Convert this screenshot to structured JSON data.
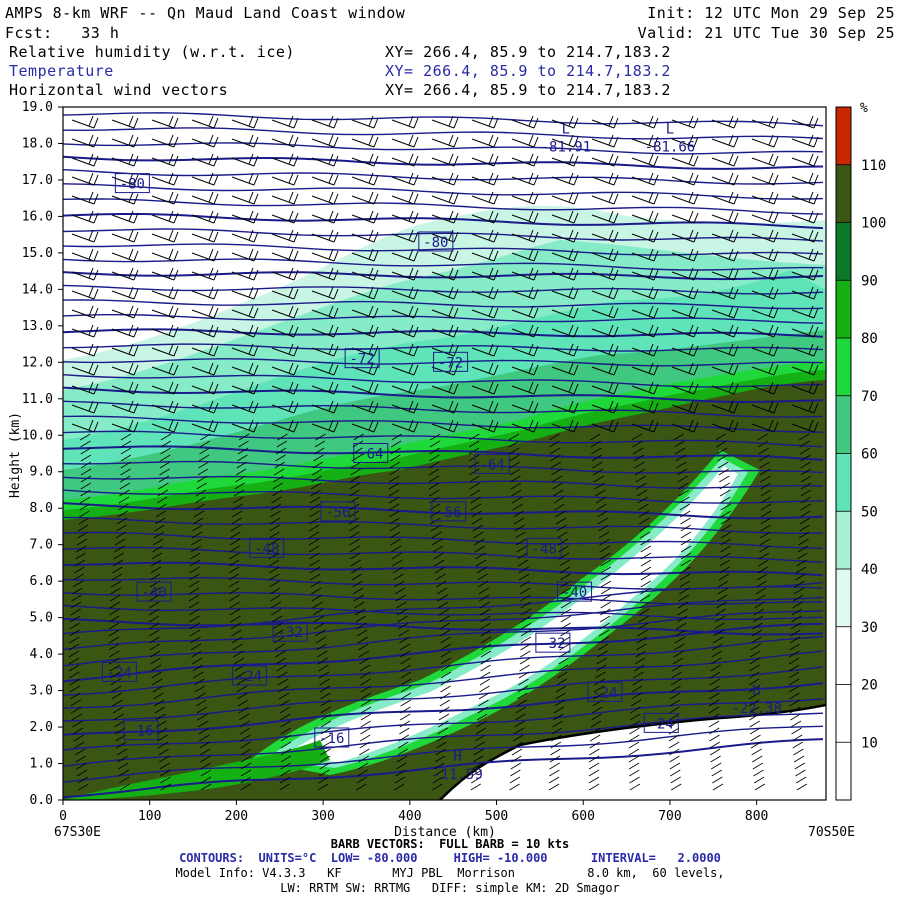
{
  "header": {
    "title": "AMPS 8-km WRF -- Qn Maud Land Coast window",
    "init": "Init: 12 UTC Mon 29 Sep 25",
    "fcst": "Fcst:   33 h",
    "valid": "Valid: 21 UTC Tue 30 Sep 25",
    "fields": [
      {
        "label": "Relative humidity (w.r.t. ice)",
        "xy": "XY= 266.4, 85.9 to 214.7,183.2",
        "color": "#000000"
      },
      {
        "label": "Temperature",
        "xy": "XY= 266.4, 85.9 to 214.7,183.2",
        "color": "#2a2aa8"
      },
      {
        "label": "Horizontal wind vectors",
        "xy": "XY= 266.4, 85.9 to 214.7,183.2",
        "color": "#000000"
      }
    ]
  },
  "chart_data": {
    "type": "heatmap",
    "title": "",
    "xlabel": "Distance (km)",
    "ylabel": "Height (km)",
    "xlim": [
      0,
      880
    ],
    "ylim": [
      0,
      19
    ],
    "x_ticks": [
      "0",
      "100",
      "200",
      "300",
      "400",
      "500",
      "600",
      "700",
      "800"
    ],
    "y_ticks": [
      "0.0",
      "1.0",
      "2.0",
      "3.0",
      "4.0",
      "5.0",
      "6.0",
      "7.0",
      "8.0",
      "9.0",
      "10.0",
      "11.0",
      "12.0",
      "13.0",
      "14.0",
      "15.0",
      "16.0",
      "17.0",
      "18.0",
      "19.0"
    ],
    "x_start_label": "67S30E",
    "x_end_label": "70S50E",
    "colorbar": {
      "unit": "%",
      "labels": [
        "10",
        "20",
        "30",
        "40",
        "50",
        "60",
        "70",
        "80",
        "90",
        "100",
        "110"
      ],
      "colors": [
        "#ffffff",
        "#ffffff",
        "#ffffff",
        "#e0f8ee",
        "#a8f0d4",
        "#5ee4b8",
        "#40c880",
        "#1fd83a",
        "#14b014",
        "#0a7a28",
        "#3b5512",
        "#c82800"
      ]
    },
    "temperature_contour_labels": [
      {
        "text": "-80",
        "x": 80,
        "y": 16.9
      },
      {
        "text": "-80",
        "x": 430,
        "y": 15.3
      },
      {
        "text": "-72",
        "x": 345,
        "y": 12.1
      },
      {
        "text": "-72",
        "x": 447,
        "y": 12.0
      },
      {
        "text": "-64",
        "x": 355,
        "y": 9.5
      },
      {
        "text": "-64",
        "x": 495,
        "y": 9.2
      },
      {
        "text": "-56",
        "x": 317,
        "y": 7.9
      },
      {
        "text": "-56",
        "x": 445,
        "y": 7.9
      },
      {
        "text": "-48",
        "x": 235,
        "y": 6.9
      },
      {
        "text": "-48",
        "x": 555,
        "y": 6.9
      },
      {
        "text": "-40",
        "x": 105,
        "y": 5.7
      },
      {
        "text": "-40",
        "x": 590,
        "y": 5.7
      },
      {
        "text": "-32",
        "x": 262,
        "y": 4.6
      },
      {
        "text": "-32",
        "x": 565,
        "y": 4.3
      },
      {
        "text": "-24",
        "x": 65,
        "y": 3.5
      },
      {
        "text": "-24",
        "x": 215,
        "y": 3.4
      },
      {
        "text": "-24",
        "x": 625,
        "y": 2.95
      },
      {
        "text": "-24",
        "x": 690,
        "y": 2.1
      },
      {
        "text": "-16",
        "x": 90,
        "y": 1.9
      },
      {
        "text": "-16",
        "x": 310,
        "y": 1.7
      }
    ],
    "extrema": [
      {
        "type": "L",
        "value": "-81.91",
        "x": 580,
        "y": 18.0
      },
      {
        "type": "L",
        "value": "-81.66",
        "x": 700,
        "y": 18.0
      },
      {
        "type": "H",
        "value": "-22.38",
        "x": 800,
        "y": 2.6
      },
      {
        "type": "H",
        "value": "-11.59",
        "x": 455,
        "y": 0.8
      }
    ]
  },
  "footer": {
    "barb_note": "BARB VECTORS:  FULL BARB = 10 kts",
    "contours": "CONTOURS:  UNITS=°C  LOW= -80.000     HIGH= -10.000      INTERVAL=   2.0000",
    "model_info": "Model Info: V4.3.3   KF       MYJ PBL  Morrison          8.0 km,  60 levels,",
    "physics": "LW: RRTM SW: RRTMG   DIFF: simple KM: 2D Smagor"
  }
}
